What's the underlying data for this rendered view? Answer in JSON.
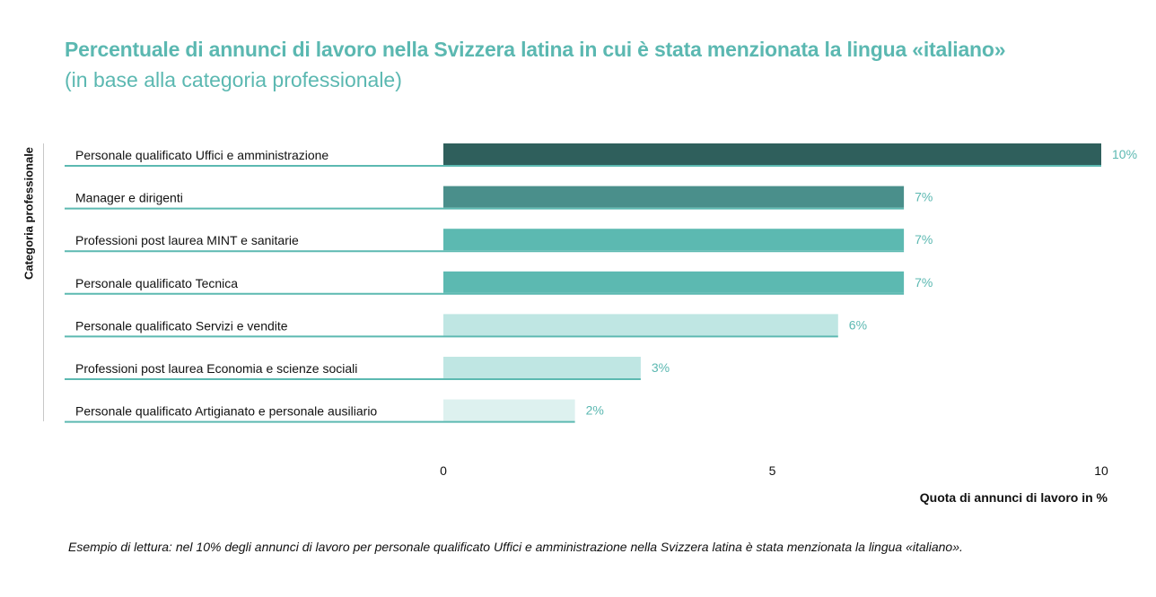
{
  "title": "Percentuale di annunci di lavoro nella Svizzera latina in cui è stata menzionata la lingua «italiano»",
  "subtitle": "(in base alla categoria professionale)",
  "footnote": "Esempio di lettura: nel 10% degli annunci di lavoro per personale qualificato Uffici e amministrazione nella Svizzera latina è stata menzionata la lingua «italiano».",
  "chart_data": {
    "type": "bar",
    "orientation": "horizontal",
    "title": "Percentuale di annunci di lavoro nella Svizzera latina in cui è stata menzionata la lingua «italiano»",
    "subtitle": "(in base alla categoria professionale)",
    "xlabel": "Quota di annunci di lavoro in %",
    "ylabel": "Categoria professionale",
    "xlim": [
      0,
      10
    ],
    "xticks": [
      0,
      5,
      10
    ],
    "grid": false,
    "categories": [
      "Personale qualificato Uffici e amministrazione",
      "Manager e dirigenti",
      "Professioni post laurea MINT e sanitarie",
      "Personale qualificato Tecnica",
      "Personale qualificato Servizi e vendite",
      "Professioni post laurea Economia e scienze sociali",
      "Personale qualificato Artigianato e personale ausiliario"
    ],
    "values": [
      10,
      7,
      7,
      7,
      6,
      3,
      2
    ],
    "value_labels": [
      "10%",
      "7%",
      "7%",
      "7%",
      "6%",
      "3%",
      "2%"
    ],
    "bar_colors": [
      "#2f5f5c",
      "#4a8f8b",
      "#5cb9b1",
      "#5cb9b1",
      "#bfe6e3",
      "#bfe6e3",
      "#ddf1ef"
    ],
    "underline_color": "#5cb9b1",
    "label_color": "#5bb8b1"
  }
}
